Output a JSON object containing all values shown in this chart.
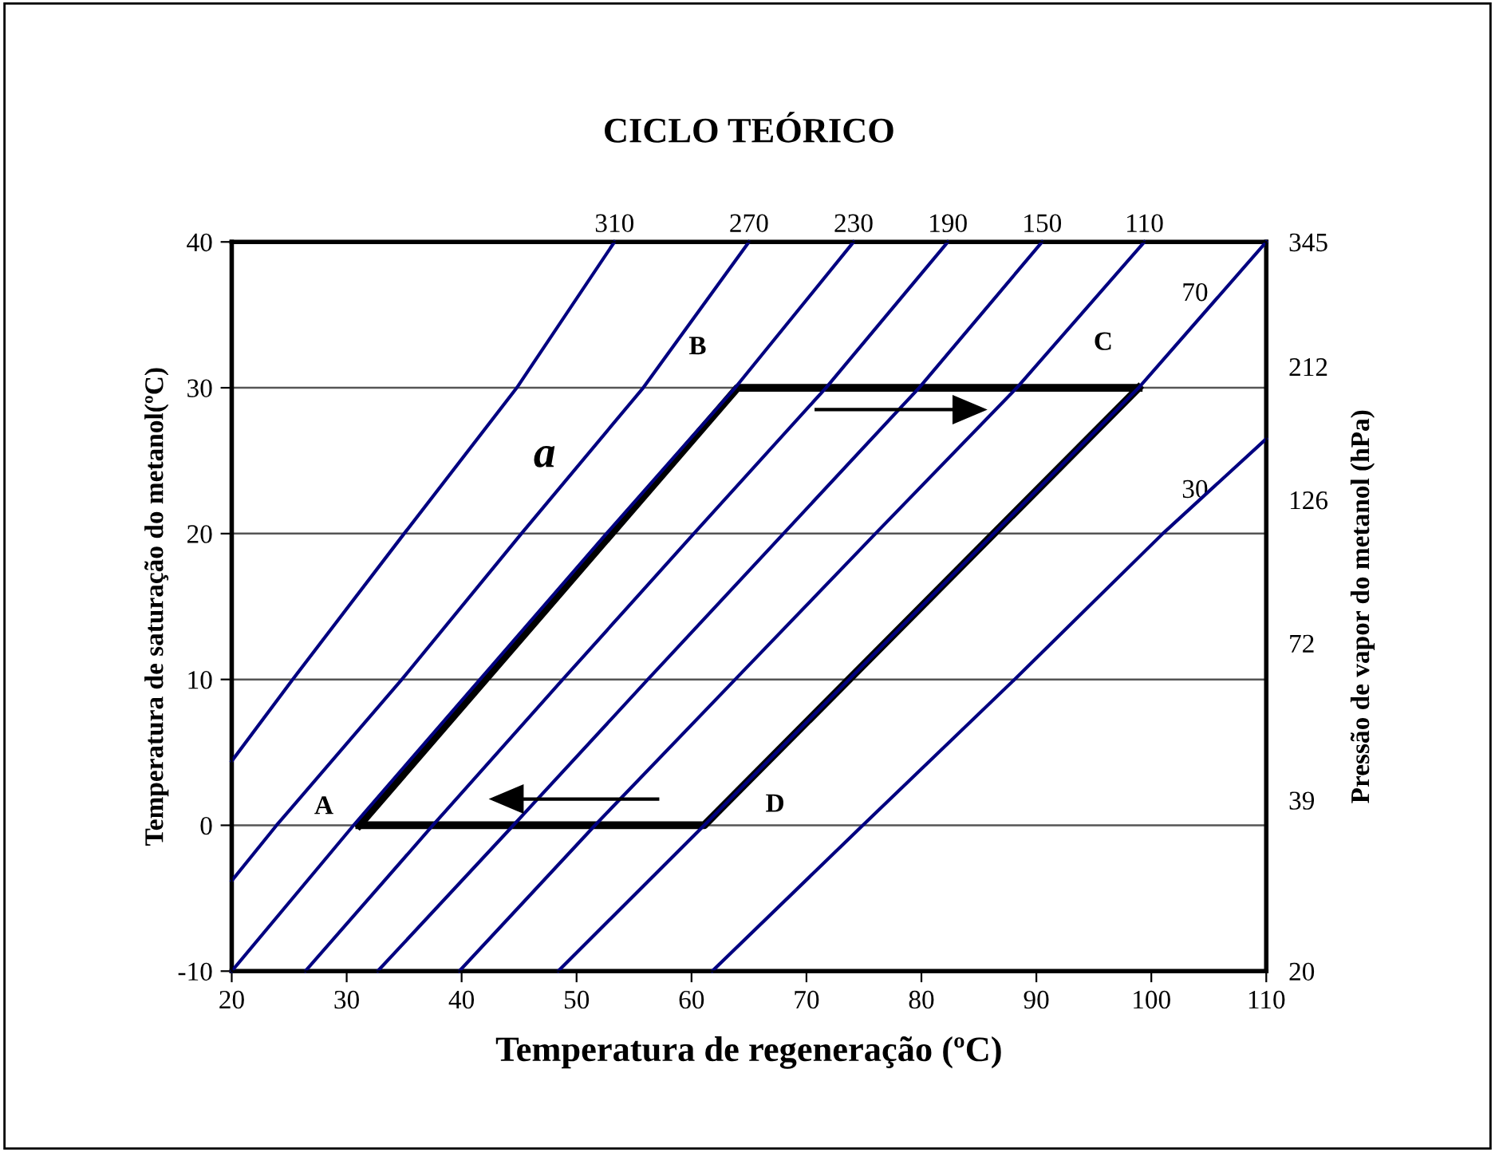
{
  "chart_data": {
    "type": "line",
    "title": "CICLO TEÓRICO",
    "xlabel": "Temperatura de regeneração (ºC)",
    "ylabel": "Temperatura de saturação do metanol(ºC)",
    "y2label": "Pressão de vapor do metanol (hPa)",
    "series": [
      {
        "name": "310",
        "color": "#000080",
        "x": [
          20,
          25.3,
          35.0,
          44.8,
          53.3
        ],
        "values": [
          4.4,
          10,
          20,
          30,
          40
        ]
      },
      {
        "name": "270",
        "color": "#000080",
        "x": [
          20,
          23.9,
          34.8,
          45.2,
          55.8,
          65.0
        ],
        "values": [
          -3.8,
          0,
          10,
          20,
          30,
          40
        ]
      },
      {
        "name": "230",
        "color": "#000080",
        "x": [
          20,
          30.6,
          41.6,
          52.6,
          63.8,
          74.1
        ],
        "values": [
          -10,
          0,
          10,
          20,
          30,
          40
        ]
      },
      {
        "name": "190",
        "color": "#000080",
        "x": [
          26.4,
          37.5,
          48.8,
          60.2,
          71.7,
          82.3
        ],
        "values": [
          -10,
          0,
          10,
          20,
          30,
          40
        ]
      },
      {
        "name": "150",
        "color": "#000080",
        "x": [
          32.7,
          44.5,
          56.2,
          68.0,
          79.8,
          90.5
        ],
        "values": [
          -10,
          0,
          10,
          20,
          30,
          40
        ]
      },
      {
        "name": "110",
        "color": "#000080",
        "x": [
          39.8,
          51.6,
          63.8,
          76.0,
          88.3,
          99.4
        ],
        "values": [
          -10,
          0,
          10,
          20,
          30,
          40
        ]
      },
      {
        "name": "70",
        "color": "#000080",
        "x": [
          48.4,
          61.1,
          73.7,
          86.3,
          98.9,
          110
        ],
        "values": [
          -10,
          0,
          10,
          20,
          30,
          40
        ]
      },
      {
        "name": "30",
        "color": "#000080",
        "x": [
          61.8,
          74.9,
          88.1,
          101.0,
          110
        ],
        "values": [
          -10,
          0,
          10,
          20,
          26.5
        ]
      },
      {
        "color": "#000000",
        "x": [
          31.1,
          64.0,
          98.9
        ],
        "values": [
          0,
          30,
          30
        ]
      },
      {
        "color": "#000000",
        "x": [
          31.1,
          61.1,
          98.9
        ],
        "values": [
          0,
          0,
          30
        ]
      }
    ],
    "annotations": [
      {
        "text": "A",
        "x": 31.1,
        "y": 0
      },
      {
        "text": "B",
        "x": 64.0,
        "y": 30
      },
      {
        "text": "C",
        "x": 98.9,
        "y": 30
      },
      {
        "text": "D",
        "x": 61.1,
        "y": 0
      },
      {
        "text": "a",
        "x": 50.5,
        "y": 25
      }
    ],
    "xlim": [
      20,
      110
    ],
    "xticks": [
      20,
      30,
      40,
      50,
      60,
      70,
      80,
      90,
      100,
      110
    ],
    "ylim": [
      -10,
      40
    ],
    "yticks": [
      -10,
      0,
      10,
      20,
      30,
      40
    ],
    "y2lim": [
      20,
      345
    ],
    "y2ticks": [
      20,
      39,
      72,
      126,
      212,
      345
    ],
    "log": "y2",
    "grid": "y",
    "legend": false,
    "marker": "none",
    "line_style": "solid"
  }
}
